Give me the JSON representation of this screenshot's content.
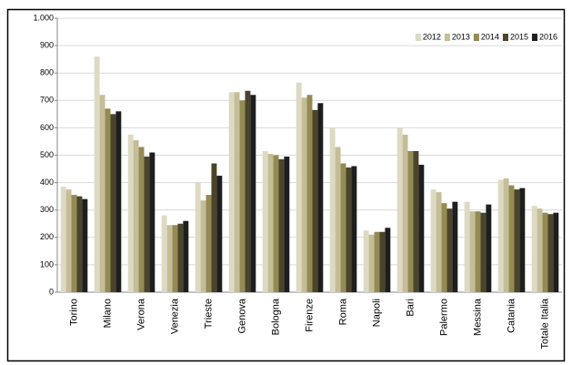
{
  "chart_data": {
    "type": "bar",
    "categories": [
      "Torino",
      "Milano",
      "Verona",
      "Venezia",
      "Trieste",
      "Genova",
      "Bologna",
      "Firenze",
      "Roma",
      "Napoli",
      "Bari",
      "Palermo",
      "Messina",
      "Catania",
      "Totale Italia"
    ],
    "series": [
      {
        "name": "2012",
        "color": "#ddd9c3",
        "values": [
          385,
          860,
          575,
          280,
          400,
          730,
          515,
          765,
          600,
          225,
          600,
          375,
          330,
          410,
          315
        ]
      },
      {
        "name": "2013",
        "color": "#c4bd97",
        "values": [
          375,
          720,
          555,
          245,
          335,
          730,
          505,
          710,
          530,
          210,
          575,
          365,
          295,
          415,
          305
        ]
      },
      {
        "name": "2014",
        "color": "#948a54",
        "values": [
          355,
          670,
          530,
          245,
          355,
          700,
          500,
          720,
          470,
          220,
          515,
          325,
          295,
          390,
          290
        ]
      },
      {
        "name": "2015",
        "color": "#4a452a",
        "values": [
          350,
          650,
          495,
          250,
          470,
          735,
          485,
          665,
          455,
          220,
          515,
          305,
          290,
          375,
          285
        ]
      },
      {
        "name": "2016",
        "color": "#1e1e1e",
        "values": [
          340,
          660,
          510,
          260,
          425,
          720,
          495,
          690,
          460,
          235,
          465,
          330,
          320,
          380,
          290
        ]
      }
    ],
    "ylim": [
      0,
      1000
    ],
    "yticks": [
      0,
      100,
      200,
      300,
      400,
      500,
      600,
      700,
      800,
      900,
      {
        "value": 1000,
        "label": "1.000"
      }
    ],
    "grid": true,
    "legend": "top-right"
  }
}
